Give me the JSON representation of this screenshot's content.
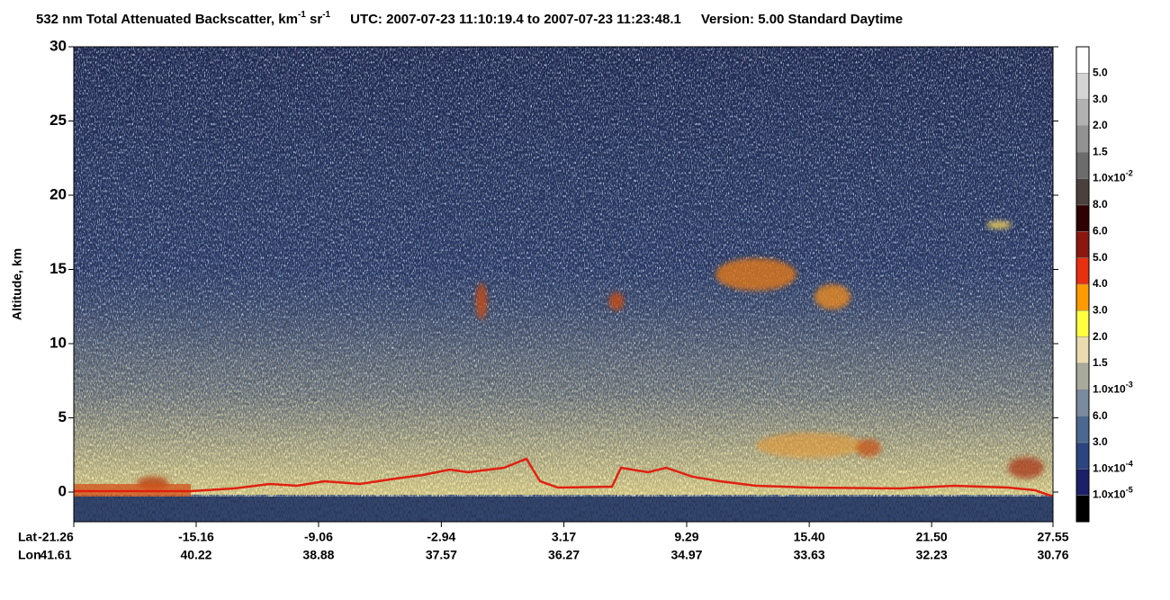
{
  "chart_data": {
    "type": "curtain",
    "title": [
      "532 nm Total Attenuated Backscatter, km",
      "-1",
      " sr",
      "-1"
    ],
    "time_range": "UTC:  2007-07-23 11:10:19.4  to  2007-07-23 11:23:48.1",
    "version": "Version: 5.00  Standard  Daytime",
    "ylabel": "Altitude, km",
    "ylim": [
      -2,
      30
    ],
    "yticks": [
      0,
      5,
      10,
      15,
      20,
      25,
      30
    ],
    "x_row_labels": [
      "Lat",
      "Lon"
    ],
    "xlim": [
      -21.26,
      27.55
    ],
    "xticks": [
      -21.26,
      -15.16,
      -9.06,
      -2.94,
      3.17,
      9.29,
      {
        "value": 15.4,
        "label": "15.40"
      },
      {
        "value": 21.5,
        "label": "21.50"
      },
      27.55
    ],
    "lon_labels": [
      "41.61",
      "40.22",
      "38.88",
      "37.57",
      "36.27",
      "34.97",
      "33.63",
      "32.23",
      "30.76"
    ],
    "colorbar": {
      "colors": [
        "#ffffff",
        "#d4d4d4",
        "#b2b2b2",
        "#929292",
        "#6c6c6c",
        "#4a403c",
        "#2e0202",
        "#8a1810",
        "#e83010",
        "#ff9a00",
        "#ffff40",
        "#eadcae",
        "#a8aa9c",
        "#7a8aa0",
        "#4c6890",
        "#2c4580",
        "#1c2068",
        "#000000"
      ],
      "labels": [
        "5.0",
        "3.0",
        "2.0",
        "1.5",
        {
          "text": "1.0x10",
          "sup": "-2"
        },
        "8.0",
        "6.0",
        "5.0",
        "4.0",
        "3.0",
        "2.0",
        "1.5",
        {
          "text": "1.0x10",
          "sup": "-3"
        },
        "6.0",
        "3.0",
        {
          "text": "1.0x10",
          "sup": "-4"
        },
        {
          "text": "1.0x10",
          "sup": "-5"
        }
      ]
    }
  }
}
